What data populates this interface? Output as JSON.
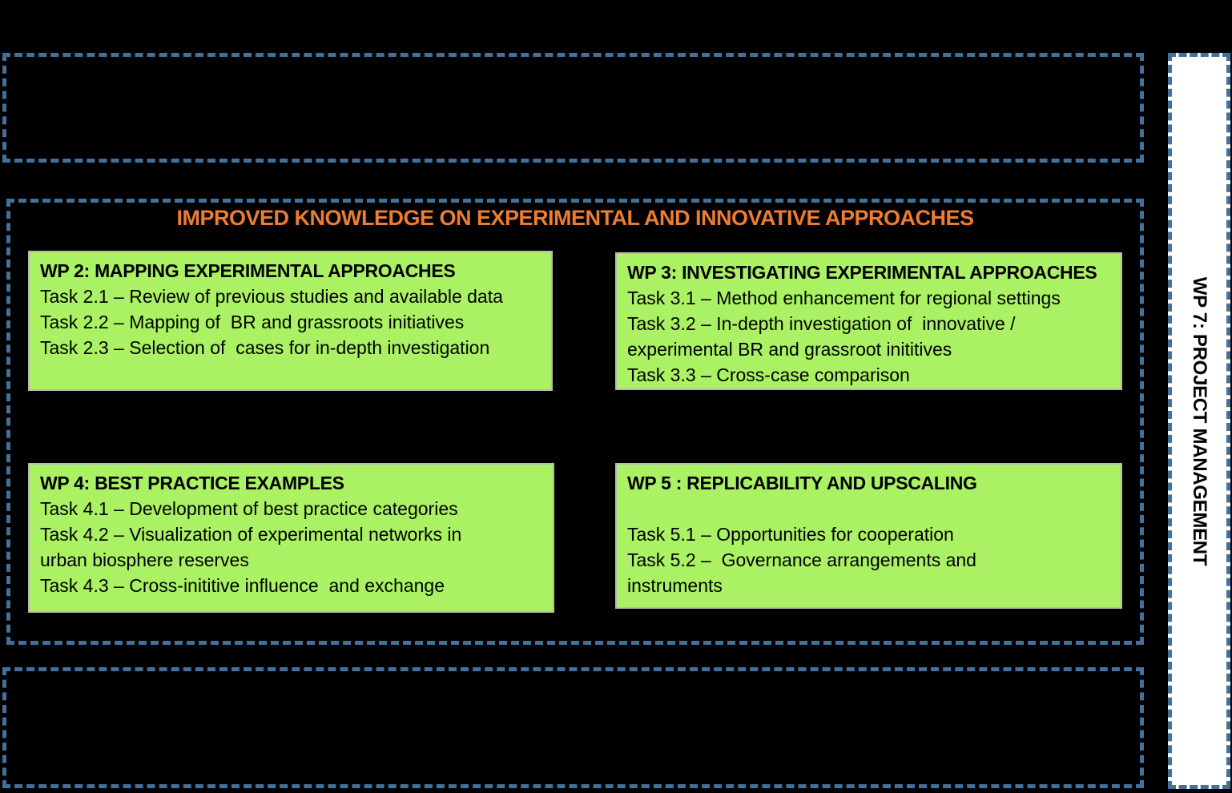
{
  "colors": {
    "background": "#000000",
    "dash_border": "#41719C",
    "wp_box_fill": "#AAF163",
    "wp_box_border": "#B8B8B8",
    "section_title_color": "#ED7D31",
    "sidebar_fill": "#FFFFFF",
    "text": "#000000"
  },
  "middle": {
    "title": "IMPROVED KNOWLEDGE ON EXPERIMENTAL AND INNOVATIVE APPROACHES",
    "work_packages": [
      {
        "title": "WP 2: MAPPING EXPERIMENTAL APPROACHES",
        "tasks": [
          "Task 2.1 – Review of previous studies and available data",
          "Task 2.2 – Mapping of  BR and grassroots initiatives",
          "Task 2.3 – Selection of  cases for in-depth investigation"
        ]
      },
      {
        "title": "WP 3: INVESTIGATING EXPERIMENTAL APPROACHES",
        "tasks": [
          "Task 3.1 – Method enhancement for regional settings",
          "Task 3.2 – In-depth investigation of  innovative /\nexperimental BR and grassroot inititives",
          "Task 3.3 – Cross-case comparison"
        ]
      },
      {
        "title": "WP 4: BEST PRACTICE EXAMPLES",
        "tasks": [
          "Task 4.1 – Development of best practice categories",
          "Task 4.2 – Visualization of experimental networks in\nurban biosphere reserves",
          "Task 4.3 – Cross-inititive influence  and exchange"
        ]
      },
      {
        "title": "WP 5 : REPLICABILITY AND UPSCALING",
        "tasks": [
          "Task 5.1 – Opportunities for cooperation",
          "Task 5.2 –  Governance arrangements and\ninstruments"
        ]
      }
    ]
  },
  "side_bar": {
    "label": "WP 7: PROJECT MANAGEMENT"
  }
}
